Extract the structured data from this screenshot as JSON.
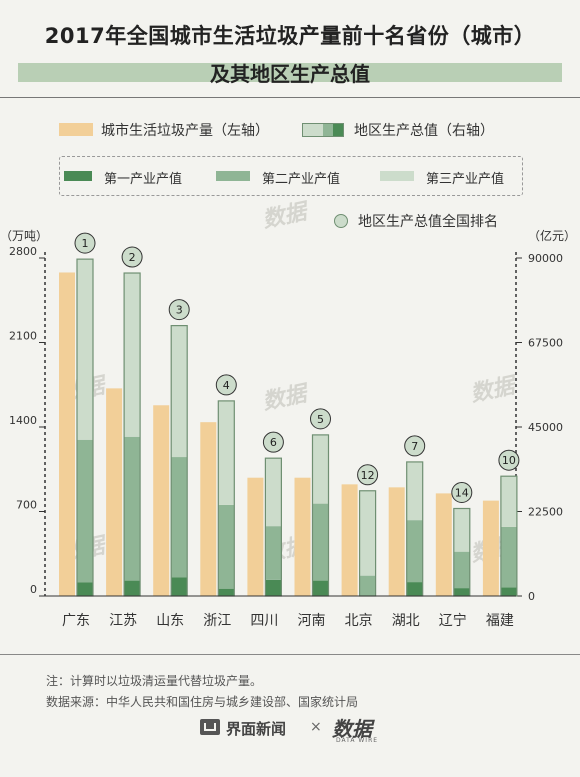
{
  "title": {
    "line1": "2017年全国城市生活垃圾产量前十名省份（城市）",
    "line2": "及其地区生产总值"
  },
  "legend": {
    "waste": "城市生活垃圾产量（左轴）",
    "gdp": "地区生产总值（右轴）",
    "primary": "第一产业产值",
    "secondary": "第二产业产值",
    "tertiary": "第三产业产值",
    "rank": "地区生产总值全国排名"
  },
  "axes": {
    "left_unit": "（万吨）",
    "right_unit": "（亿元）"
  },
  "notes": {
    "line1": "注：计算时以垃圾清运量代替垃圾产量。",
    "line2": "数据来源：中华人民共和国住房与城乡建设部、国家统计局"
  },
  "footer": {
    "brand": "界面新闻",
    "cross": "×",
    "partner": "数据",
    "partner_sub": "DATA WIRE"
  },
  "watermark": "数据",
  "colors": {
    "waste": "#f2cf98",
    "primary": "#4a8a55",
    "secondary": "#8fb595",
    "tertiary": "#ccdccb",
    "outline": "#6f8f72",
    "background": "#f3f3ef",
    "title_band": "#b9cfb5"
  },
  "chart_data": {
    "type": "bar",
    "categories": [
      "广东",
      "江苏",
      "山东",
      "浙江",
      "四川",
      "河南",
      "北京",
      "湖北",
      "辽宁",
      "福建"
    ],
    "left_axis": {
      "ticks": [
        0,
        700,
        1400,
        2100,
        2800
      ],
      "ylim": [
        0,
        2800
      ]
    },
    "right_axis": {
      "ticks": [
        0,
        22500,
        45000,
        67500,
        90000
      ],
      "ylim": [
        0,
        90000
      ]
    },
    "series": [
      {
        "name": "城市生活垃圾产量（左轴）",
        "axis": "left",
        "values": [
          2680,
          1720,
          1580,
          1440,
          980,
          980,
          925,
          900,
          850,
          790
        ]
      },
      {
        "name": "第一产业产值",
        "axis": "right",
        "values": [
          3600,
          4100,
          5000,
          1950,
          4300,
          4100,
          120,
          3700,
          2100,
          2300
        ]
      },
      {
        "name": "第二产业产值",
        "axis": "right",
        "values": [
          38000,
          38300,
          32000,
          22300,
          14300,
          20500,
          5300,
          16500,
          9700,
          16100
        ]
      },
      {
        "name": "第三产业产值",
        "axis": "right",
        "values": [
          48100,
          43600,
          35000,
          27700,
          18100,
          18300,
          22600,
          15500,
          11500,
          13500
        ]
      }
    ],
    "gdp_rank": [
      1,
      2,
      3,
      4,
      6,
      5,
      12,
      7,
      14,
      10
    ]
  }
}
